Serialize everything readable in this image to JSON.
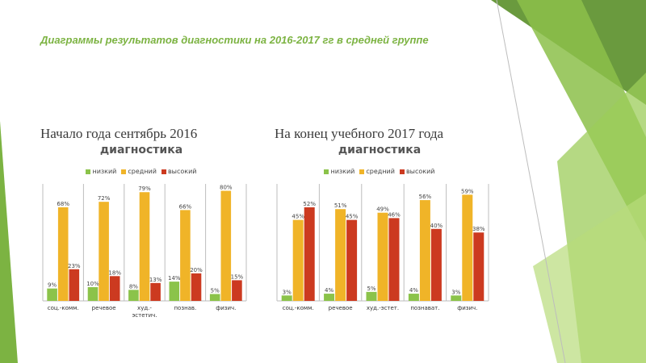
{
  "title": "Диаграммы результатов диагностики на 2016-2017 гг в средней группе",
  "left_heading": "Начало года сентябрь 2016",
  "right_heading": "На конец учебного 2017 года",
  "colors": {
    "низкий": "#8bc34a",
    "средний": "#f0b428",
    "высокий": "#cc3a20",
    "accent": "#7cb342"
  },
  "chart_data": [
    {
      "type": "bar",
      "title": "диагностика",
      "legend": [
        "низкий",
        "средний",
        "высокий"
      ],
      "legend_position": "top",
      "categories": [
        "соц.-комм.",
        "речевое",
        "худ.-эстетич.",
        "познав.",
        "физич."
      ],
      "category_lines": [
        [
          "соц.-комм."
        ],
        [
          "речевое"
        ],
        [
          "худ.-",
          "эстетич."
        ],
        [
          "познав."
        ],
        [
          "физич."
        ]
      ],
      "series": [
        {
          "name": "низкий",
          "values": [
            9,
            10,
            8,
            14,
            5
          ],
          "labels": [
            "9%",
            "10%",
            "8%",
            "14%",
            "5%"
          ]
        },
        {
          "name": "средний",
          "values": [
            68,
            72,
            79,
            66,
            80
          ],
          "labels": [
            "68%",
            "72%",
            "79%",
            "66%",
            "80%"
          ]
        },
        {
          "name": "высокий",
          "values": [
            23,
            18,
            13,
            20,
            15
          ],
          "labels": [
            "23%",
            "18%",
            "13%",
            "20%",
            "15%"
          ]
        }
      ],
      "ylim": [
        0,
        85
      ],
      "grid": false
    },
    {
      "type": "bar",
      "title": "диагностика",
      "legend": [
        "низкий",
        "средний",
        "высокий"
      ],
      "legend_position": "top",
      "categories": [
        "соц.-комм.",
        "речевое",
        "худ.-эстет.",
        "познават.",
        "физич."
      ],
      "category_lines": [
        [
          "соц.-комм."
        ],
        [
          "речевое"
        ],
        [
          "худ.-эстет."
        ],
        [
          "познават."
        ],
        [
          "физич."
        ]
      ],
      "series": [
        {
          "name": "низкий",
          "values": [
            3,
            4,
            5,
            4,
            3
          ],
          "labels": [
            "3%",
            "4%",
            "5%",
            "4%",
            "3%"
          ]
        },
        {
          "name": "средний",
          "values": [
            45,
            51,
            49,
            56,
            59
          ],
          "labels": [
            "45%",
            "51%",
            "49%",
            "56%",
            "59%"
          ]
        },
        {
          "name": "высокий",
          "values": [
            52,
            45,
            46,
            40,
            38
          ],
          "labels": [
            "52%",
            "45%",
            "46%",
            "40%",
            "38%"
          ]
        }
      ],
      "ylim": [
        0,
        65
      ],
      "grid": false
    }
  ]
}
